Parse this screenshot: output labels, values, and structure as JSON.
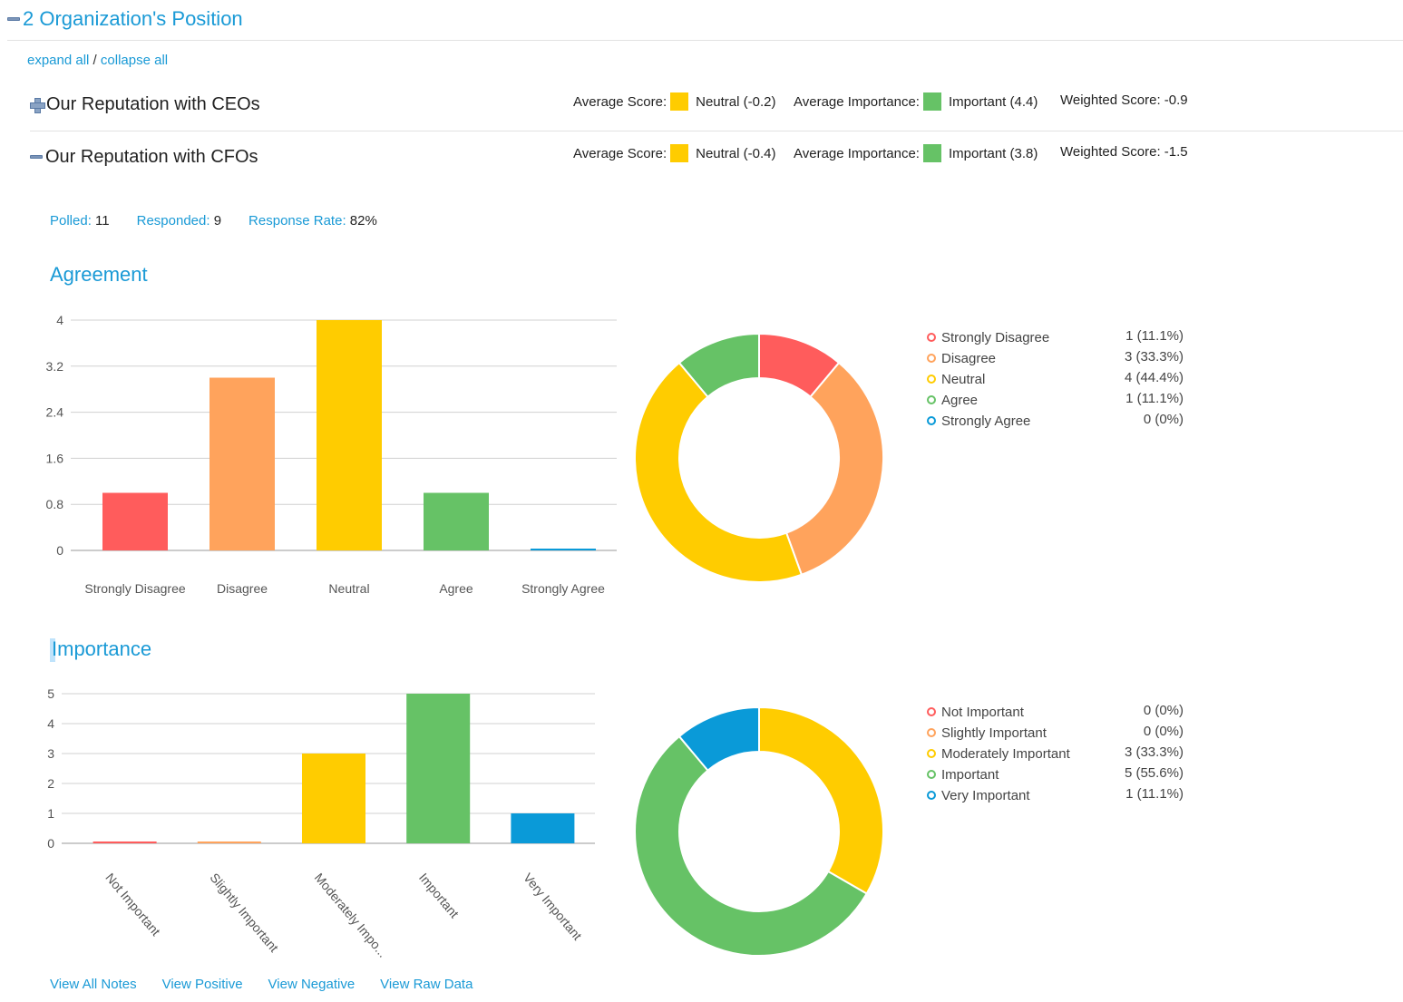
{
  "section": {
    "title": "2 Organization's Position"
  },
  "controls": {
    "expand_all": "expand all",
    "separator": " / ",
    "collapse_all": "collapse all"
  },
  "rows": [
    {
      "title": "Our Reputation with CEOs",
      "avg_score_label": "Average Score:",
      "avg_score_value": "Neutral (-0.2)",
      "avg_score_color": "#ffcc00",
      "avg_importance_label": "Average Importance:",
      "avg_importance_value": "Important (4.4)",
      "avg_importance_color": "#66c266",
      "weighted_label": "Weighted Score:",
      "weighted_value": "-0.9"
    },
    {
      "title": "Our Reputation with CFOs",
      "avg_score_label": "Average Score:",
      "avg_score_value": "Neutral (-0.4)",
      "avg_score_color": "#ffcc00",
      "avg_importance_label": "Average Importance:",
      "avg_importance_value": "Important (3.8)",
      "avg_importance_color": "#66c266",
      "weighted_label": "Weighted Score:",
      "weighted_value": "-1.5"
    }
  ],
  "stats": {
    "polled_label": "Polled:",
    "polled_value": "11",
    "responded_label": "Responded:",
    "responded_value": "9",
    "rate_label": "Response Rate:",
    "rate_value": "82%"
  },
  "agreement": {
    "title": "Agreement"
  },
  "importance": {
    "title": "Importance"
  },
  "chart_data": [
    {
      "type": "bar",
      "title": "Agreement",
      "categories": [
        "Strongly Disagree",
        "Disagree",
        "Neutral",
        "Agree",
        "Strongly Agree"
      ],
      "values": [
        1,
        3,
        4,
        1,
        0
      ],
      "colors": [
        "#ff5c5c",
        "#ffa35c",
        "#ffcc00",
        "#66c266",
        "#0a9ad8"
      ],
      "ylim": [
        0,
        4
      ],
      "yticks": [
        "0",
        "0.8",
        "1.6",
        "2.4",
        "3.2",
        "4"
      ],
      "grid": true,
      "label_rotation": "none"
    },
    {
      "type": "pie",
      "title": "Agreement",
      "categories": [
        "Strongly Disagree",
        "Disagree",
        "Neutral",
        "Agree",
        "Strongly Agree"
      ],
      "values": [
        1,
        3,
        4,
        1,
        0
      ],
      "colors": [
        "#ff5c5c",
        "#ffa35c",
        "#ffcc00",
        "#66c266",
        "#0a9ad8"
      ],
      "legend_values": [
        "1 (11.1%)",
        "3 (33.3%)",
        "4 (44.4%)",
        "1 (11.1%)",
        "0 (0%)"
      ],
      "legend": "right"
    },
    {
      "type": "bar",
      "title": "Importance",
      "categories": [
        "Not Important",
        "Slightly Important",
        "Moderately Important",
        "Important",
        "Very Important"
      ],
      "tick_labels": [
        "Not Important",
        "Slightly Important",
        "Moderately Impo...",
        "Important",
        "Very Important"
      ],
      "values": [
        0,
        0,
        3,
        5,
        1
      ],
      "colors": [
        "#ff5c5c",
        "#ffa35c",
        "#ffcc00",
        "#66c266",
        "#0a9ad8"
      ],
      "ylim": [
        0,
        5
      ],
      "yticks": [
        "0",
        "1",
        "2",
        "3",
        "4",
        "5"
      ],
      "grid": true,
      "label_rotation": "rotated"
    },
    {
      "type": "pie",
      "title": "Importance",
      "categories": [
        "Not Important",
        "Slightly Important",
        "Moderately Important",
        "Important",
        "Very Important"
      ],
      "values": [
        0,
        0,
        3,
        5,
        1
      ],
      "colors": [
        "#ff5c5c",
        "#ffa35c",
        "#ffcc00",
        "#66c266",
        "#0a9ad8"
      ],
      "legend_values": [
        "0 (0%)",
        "0 (0%)",
        "3 (33.3%)",
        "5 (55.6%)",
        "1 (11.1%)"
      ],
      "legend": "right"
    }
  ],
  "footer": {
    "view_all_notes": "View All Notes",
    "view_positive": "View Positive",
    "view_negative": "View Negative",
    "view_raw_data": "View Raw Data"
  }
}
